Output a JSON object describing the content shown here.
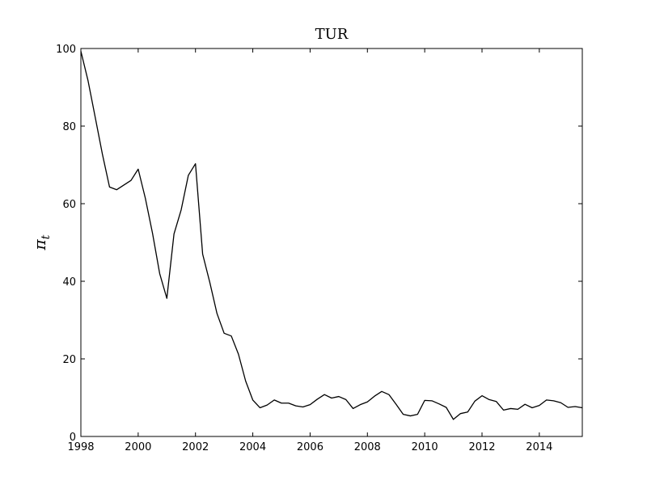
{
  "chart_data": {
    "type": "line",
    "title": "TUR",
    "xlabel": "",
    "ylabel": "π_t",
    "ylabel_main": "π",
    "ylabel_sub": "t",
    "xlim": [
      1998,
      2015.5
    ],
    "ylim": [
      0,
      100
    ],
    "xticks": [
      1998,
      2000,
      2002,
      2004,
      2006,
      2008,
      2010,
      2012,
      2014
    ],
    "yticks": [
      0,
      20,
      40,
      60,
      80,
      100
    ],
    "grid": false,
    "line_color": "#000000",
    "series": [
      {
        "x": [
          1998.0,
          1998.25,
          1998.5,
          1998.75,
          1999.0,
          1999.25,
          1999.5,
          1999.75,
          2000.0,
          2000.25,
          2000.5,
          2000.75,
          2001.0,
          2001.25,
          2001.5,
          2001.75,
          2002.0,
          2002.25,
          2002.5,
          2002.75,
          2003.0,
          2003.25,
          2003.5,
          2003.75,
          2004.0,
          2004.25,
          2004.5,
          2004.75,
          2005.0,
          2005.25,
          2005.5,
          2005.75,
          2006.0,
          2006.25,
          2006.5,
          2006.75,
          2007.0,
          2007.25,
          2007.5,
          2007.75,
          2008.0,
          2008.25,
          2008.5,
          2008.75,
          2009.0,
          2009.25,
          2009.5,
          2009.75,
          2010.0,
          2010.25,
          2010.5,
          2010.75,
          2011.0,
          2011.25,
          2011.5,
          2011.75,
          2012.0,
          2012.25,
          2012.5,
          2012.75,
          2013.0,
          2013.25,
          2013.5,
          2013.75,
          2014.0,
          2014.25,
          2014.5,
          2014.75,
          2015.0,
          2015.25,
          2015.5
        ],
        "y": [
          99.3,
          91.7,
          82.3,
          72.8,
          64.3,
          63.6,
          64.8,
          66.0,
          68.9,
          61.4,
          52.4,
          42.0,
          35.6,
          52.2,
          58.4,
          67.3,
          70.3,
          47.0,
          39.7,
          31.7,
          26.6,
          25.9,
          21.2,
          14.3,
          9.4,
          7.4,
          8.1,
          9.4,
          8.6,
          8.6,
          7.9,
          7.6,
          8.2,
          9.6,
          10.8,
          9.9,
          10.3,
          9.5,
          7.2,
          8.2,
          8.9,
          10.4,
          11.6,
          10.8,
          8.3,
          5.7,
          5.3,
          5.7,
          9.3,
          9.2,
          8.4,
          7.5,
          4.4,
          5.9,
          6.3,
          9.1,
          10.5,
          9.5,
          9.0,
          6.8,
          7.2,
          7.0,
          8.3,
          7.4,
          8.0,
          9.4,
          9.2,
          8.7,
          7.5,
          7.7,
          7.4
        ]
      }
    ]
  }
}
